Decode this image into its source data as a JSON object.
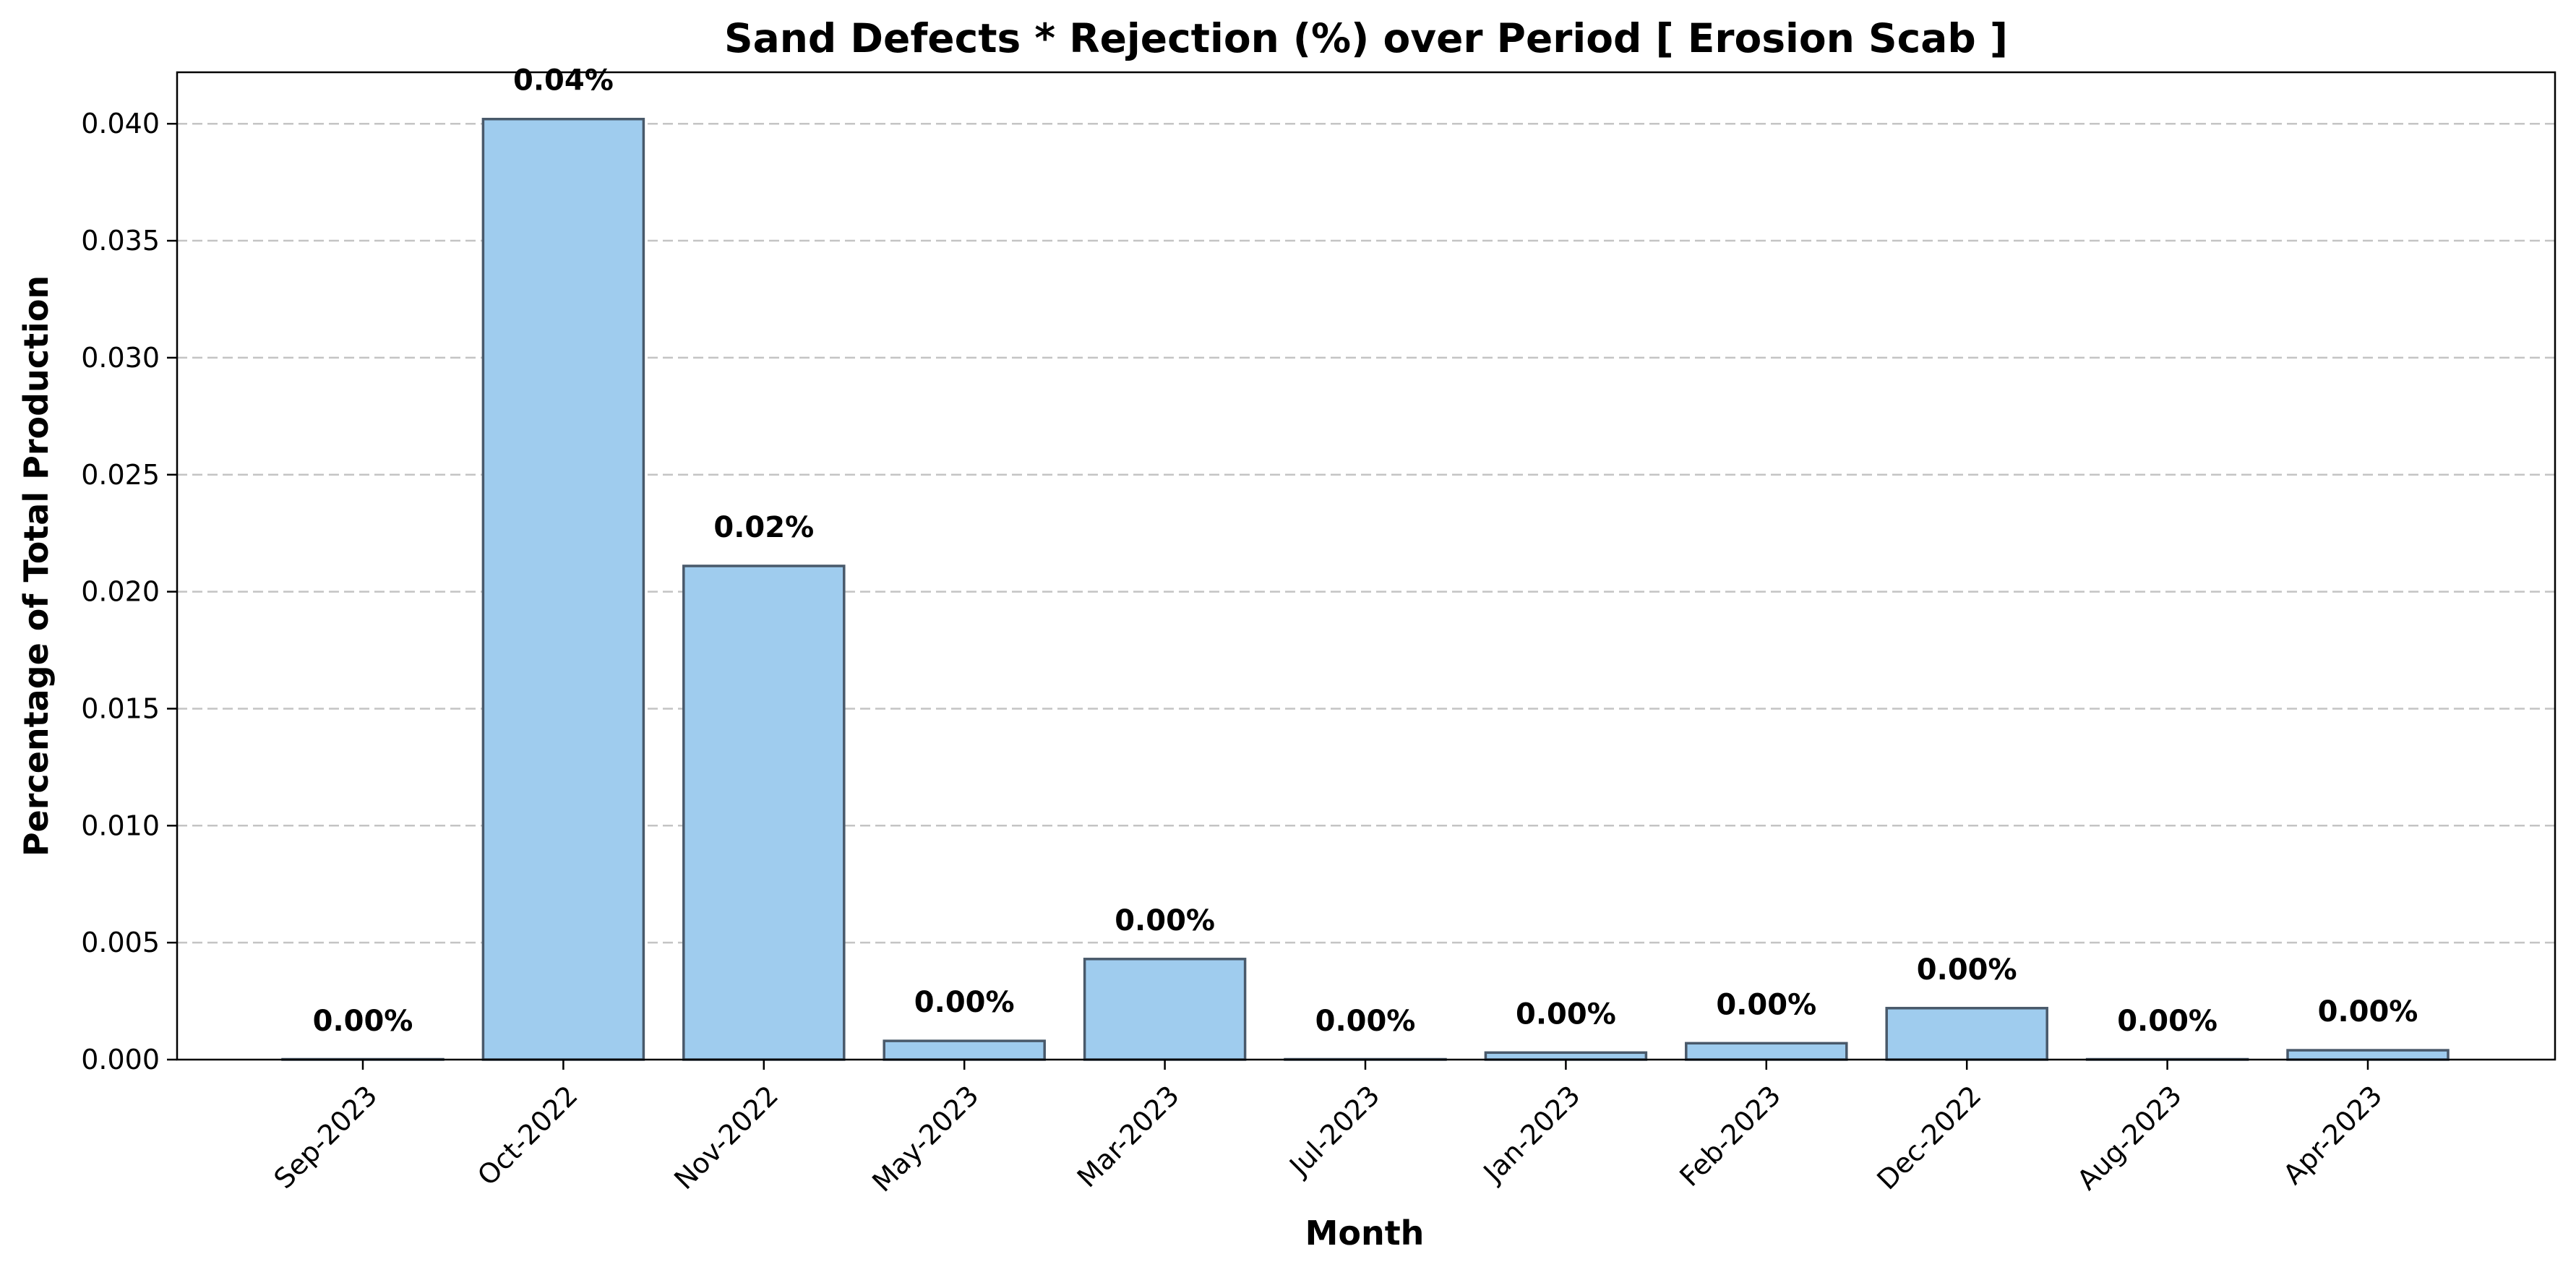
{
  "chart_data": {
    "type": "bar",
    "title": "Sand Defects * Rejection (%) over Period [ Erosion Scab ]",
    "xlabel": "Month",
    "ylabel": "Percentage of Total Production",
    "categories": [
      "Sep-2023",
      "Oct-2022",
      "Nov-2022",
      "May-2023",
      "Mar-2023",
      "Jul-2023",
      "Jan-2023",
      "Feb-2023",
      "Dec-2022",
      "Aug-2023",
      "Apr-2023"
    ],
    "values": [
      0.0,
      0.0402,
      0.0211,
      0.0008,
      0.0043,
      0.0,
      0.0003,
      0.0007,
      0.0022,
      0.0,
      0.0004
    ],
    "data_labels": [
      "0.00%",
      "0.04%",
      "0.02%",
      "0.00%",
      "0.00%",
      "0.00%",
      "0.00%",
      "0.00%",
      "0.00%",
      "0.00%",
      "0.00%"
    ],
    "ylim": [
      0,
      0.0422
    ],
    "yticks": [
      "0.000",
      "0.005",
      "0.010",
      "0.015",
      "0.020",
      "0.025",
      "0.030",
      "0.035",
      "0.040"
    ],
    "ytick_values": [
      0,
      0.005,
      0.01,
      0.015,
      0.02,
      0.025,
      0.03,
      0.035,
      0.04
    ],
    "grid": "y-dashed",
    "legend": "none",
    "colors": {
      "bar_fill": "#9fccee",
      "bar_edge": "#49596a",
      "grid": "#c4c4c4"
    }
  }
}
